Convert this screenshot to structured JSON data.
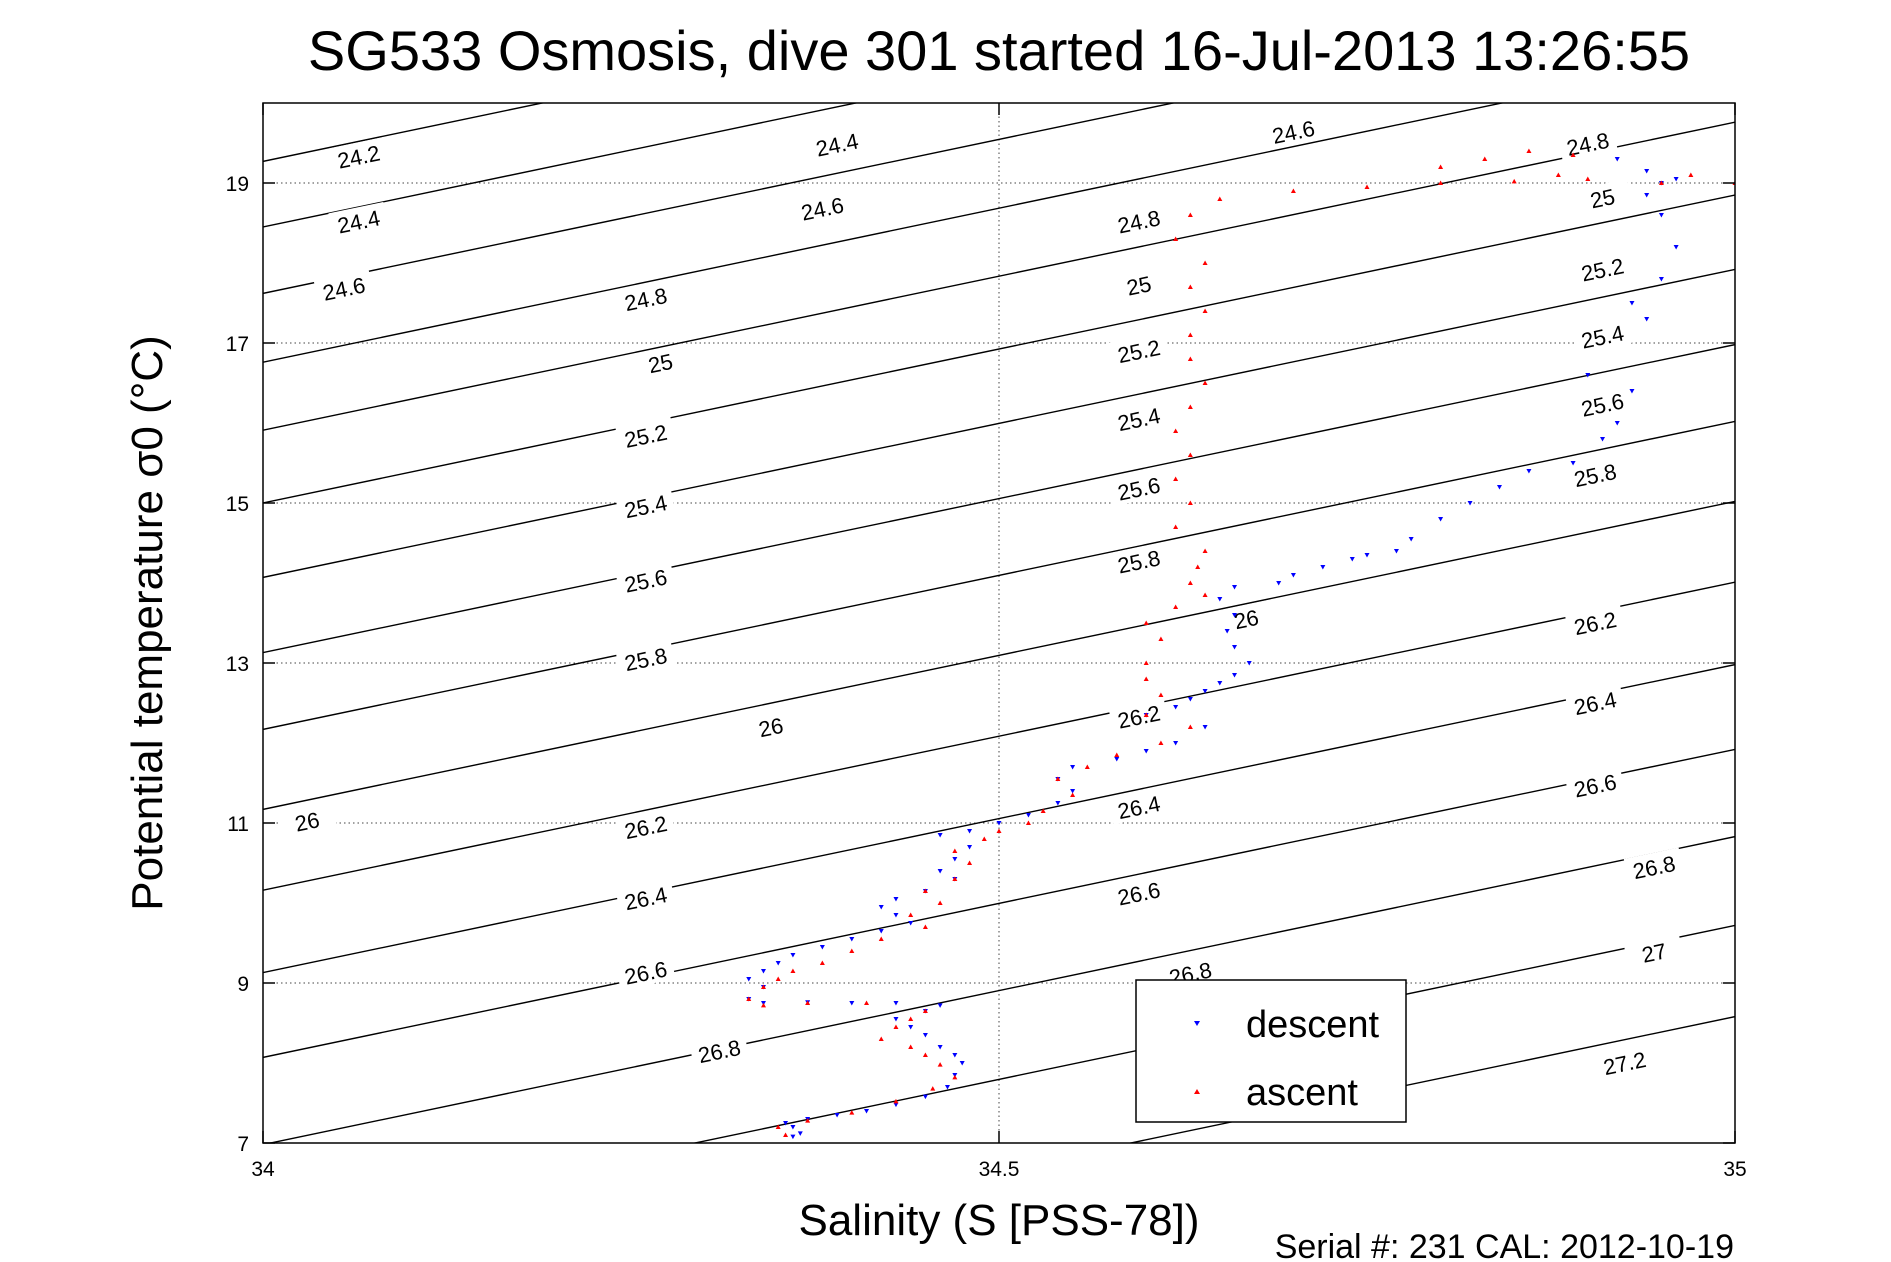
{
  "chart_data": {
    "type": "scatter",
    "title": "SG533 Osmosis, dive 301 started 16-Jul-2013 13:26:55",
    "xlabel": "Salinity (S [PSS-78])",
    "ylabel": "Potential temperature σ0 (°C)",
    "xlim": [
      34,
      35
    ],
    "ylim": [
      7,
      20
    ],
    "xticks": [
      34,
      34.5,
      35
    ],
    "xtick_labels": [
      "34",
      "34.5",
      "35"
    ],
    "yticks": [
      7,
      9,
      11,
      13,
      15,
      17,
      19
    ],
    "ytick_labels": [
      "7",
      "9",
      "11",
      "13",
      "15",
      "17",
      "19"
    ],
    "grid": "dotted at x=34.5 and at each y tick",
    "legend_position": "bottom-right inside axes",
    "footer": "Serial #: 231  CAL: 2012-10-19",
    "density_contours": {
      "levels": [
        {
          "level": "24.2",
          "t_at_34": 19.27
        },
        {
          "level": "24.4",
          "t_at_34": 18.45
        },
        {
          "level": "24.6",
          "t_at_34": 17.62
        },
        {
          "level": "24.8",
          "t_at_34": 16.76
        },
        {
          "level": "25",
          "t_at_34": 15.91
        },
        {
          "level": "25.2",
          "t_at_34": 15.0
        },
        {
          "level": "25.4",
          "t_at_34": 14.07
        },
        {
          "level": "25.6",
          "t_at_34": 13.13
        },
        {
          "level": "25.8",
          "t_at_34": 12.17
        },
        {
          "level": "26",
          "t_at_34": 11.17
        },
        {
          "level": "26.2",
          "t_at_34": 10.16
        },
        {
          "level": "26.4",
          "t_at_34": 9.13
        },
        {
          "level": "26.6",
          "t_at_34": 8.07
        },
        {
          "level": "26.8",
          "t_at_34": 6.98
        },
        {
          "level": "27",
          "t_at_34": 5.87
        },
        {
          "level": "27.2",
          "t_at_34": 4.73
        }
      ],
      "labels": [
        {
          "text": "24.2",
          "s": 34.065,
          "t": 19.33
        },
        {
          "text": "24.4",
          "s": 34.065,
          "t": 18.52
        },
        {
          "text": "24.6",
          "s": 34.055,
          "t": 17.68
        },
        {
          "text": "24.4",
          "s": 34.39,
          "t": 19.48
        },
        {
          "text": "24.6",
          "s": 34.38,
          "t": 18.68
        },
        {
          "text": "24.8",
          "s": 34.26,
          "t": 17.55
        },
        {
          "text": "25",
          "s": 34.27,
          "t": 16.75
        },
        {
          "text": "25.2",
          "s": 34.26,
          "t": 15.84
        },
        {
          "text": "25.4",
          "s": 34.26,
          "t": 14.96
        },
        {
          "text": "25.6",
          "s": 34.26,
          "t": 14.03
        },
        {
          "text": "25.8",
          "s": 34.26,
          "t": 13.05
        },
        {
          "text": "26",
          "s": 34.345,
          "t": 12.2
        },
        {
          "text": "26",
          "s": 34.03,
          "t": 11.02
        },
        {
          "text": "26.2",
          "s": 34.26,
          "t": 10.95
        },
        {
          "text": "26.4",
          "s": 34.26,
          "t": 10.06
        },
        {
          "text": "26.6",
          "s": 34.26,
          "t": 9.13
        },
        {
          "text": "26.8",
          "s": 34.31,
          "t": 8.15
        },
        {
          "text": "24.6",
          "s": 34.7,
          "t": 19.64
        },
        {
          "text": "24.8",
          "s": 34.595,
          "t": 18.52
        },
        {
          "text": "25",
          "s": 34.595,
          "t": 17.72
        },
        {
          "text": "25.2",
          "s": 34.595,
          "t": 16.9
        },
        {
          "text": "25.4",
          "s": 34.595,
          "t": 16.05
        },
        {
          "text": "25.6",
          "s": 34.595,
          "t": 15.18
        },
        {
          "text": "25.8",
          "s": 34.595,
          "t": 14.27
        },
        {
          "text": "26",
          "s": 34.668,
          "t": 13.55
        },
        {
          "text": "26.2",
          "s": 34.595,
          "t": 12.33
        },
        {
          "text": "26.4",
          "s": 34.595,
          "t": 11.2
        },
        {
          "text": "26.6",
          "s": 34.595,
          "t": 10.12
        },
        {
          "text": "26.8",
          "s": 34.63,
          "t": 9.12
        },
        {
          "text": "24.8",
          "s": 34.9,
          "t": 19.49
        },
        {
          "text": "25",
          "s": 34.91,
          "t": 18.81
        },
        {
          "text": "25.2",
          "s": 34.91,
          "t": 17.92
        },
        {
          "text": "25.4",
          "s": 34.91,
          "t": 17.08
        },
        {
          "text": "25.6",
          "s": 34.91,
          "t": 16.23
        },
        {
          "text": "25.8",
          "s": 34.905,
          "t": 15.35
        },
        {
          "text": "26.2",
          "s": 34.905,
          "t": 13.5
        },
        {
          "text": "26.4",
          "s": 34.905,
          "t": 12.5
        },
        {
          "text": "26.6",
          "s": 34.905,
          "t": 11.47
        },
        {
          "text": "26.8",
          "s": 34.945,
          "t": 10.45
        },
        {
          "text": "27",
          "s": 34.945,
          "t": 9.38
        },
        {
          "text": "27.2",
          "s": 34.925,
          "t": 8.0
        }
      ]
    },
    "series": [
      {
        "name": "descent",
        "color": "#0000ff",
        "marker": "triangle-down",
        "points": [
          [
            34.36,
            7.08
          ],
          [
            34.365,
            7.12
          ],
          [
            34.36,
            7.2
          ],
          [
            34.355,
            7.25
          ],
          [
            34.37,
            7.3
          ],
          [
            34.39,
            7.35
          ],
          [
            34.41,
            7.4
          ],
          [
            34.43,
            7.48
          ],
          [
            34.45,
            7.58
          ],
          [
            34.465,
            7.7
          ],
          [
            34.47,
            7.85
          ],
          [
            34.475,
            8.0
          ],
          [
            34.47,
            8.1
          ],
          [
            34.46,
            8.2
          ],
          [
            34.45,
            8.35
          ],
          [
            34.44,
            8.45
          ],
          [
            34.43,
            8.55
          ],
          [
            34.45,
            8.65
          ],
          [
            34.46,
            8.72
          ],
          [
            34.43,
            8.75
          ],
          [
            34.4,
            8.75
          ],
          [
            34.37,
            8.76
          ],
          [
            34.34,
            8.75
          ],
          [
            34.33,
            8.8
          ],
          [
            34.34,
            8.95
          ],
          [
            34.33,
            9.05
          ],
          [
            34.34,
            9.15
          ],
          [
            34.35,
            9.25
          ],
          [
            34.36,
            9.35
          ],
          [
            34.38,
            9.45
          ],
          [
            34.4,
            9.55
          ],
          [
            34.42,
            9.65
          ],
          [
            34.44,
            9.75
          ],
          [
            34.43,
            9.85
          ],
          [
            34.42,
            9.95
          ],
          [
            34.43,
            10.05
          ],
          [
            34.45,
            10.15
          ],
          [
            34.47,
            10.3
          ],
          [
            34.46,
            10.4
          ],
          [
            34.47,
            10.55
          ],
          [
            34.48,
            10.7
          ],
          [
            34.46,
            10.85
          ],
          [
            34.48,
            10.9
          ],
          [
            34.5,
            11.0
          ],
          [
            34.52,
            11.1
          ],
          [
            34.54,
            11.25
          ],
          [
            34.55,
            11.4
          ],
          [
            34.54,
            11.55
          ],
          [
            34.55,
            11.7
          ],
          [
            34.58,
            11.8
          ],
          [
            34.6,
            11.9
          ],
          [
            34.62,
            12.0
          ],
          [
            34.64,
            12.2
          ],
          [
            34.6,
            12.35
          ],
          [
            34.62,
            12.45
          ],
          [
            34.63,
            12.55
          ],
          [
            34.64,
            12.65
          ],
          [
            34.65,
            12.75
          ],
          [
            34.66,
            12.85
          ],
          [
            34.67,
            13.0
          ],
          [
            34.66,
            13.2
          ],
          [
            34.655,
            13.4
          ],
          [
            34.66,
            13.6
          ],
          [
            34.65,
            13.8
          ],
          [
            34.66,
            13.95
          ],
          [
            34.69,
            14.0
          ],
          [
            34.7,
            14.1
          ],
          [
            34.72,
            14.2
          ],
          [
            34.74,
            14.3
          ],
          [
            34.75,
            14.35
          ],
          [
            34.77,
            14.4
          ],
          [
            34.78,
            14.55
          ],
          [
            34.8,
            14.8
          ],
          [
            34.82,
            15.0
          ],
          [
            34.84,
            15.2
          ],
          [
            34.86,
            15.4
          ],
          [
            34.89,
            15.5
          ],
          [
            34.91,
            15.8
          ],
          [
            34.92,
            16.0
          ],
          [
            34.93,
            16.4
          ],
          [
            34.9,
            16.6
          ],
          [
            34.94,
            17.3
          ],
          [
            34.93,
            17.5
          ],
          [
            34.95,
            17.8
          ],
          [
            34.96,
            18.2
          ],
          [
            34.95,
            18.6
          ],
          [
            34.94,
            18.85
          ],
          [
            34.95,
            19.0
          ],
          [
            34.96,
            19.05
          ],
          [
            34.94,
            19.15
          ],
          [
            34.92,
            19.3
          ]
        ]
      },
      {
        "name": "ascent",
        "color": "#ff0000",
        "marker": "triangle-up",
        "points": [
          [
            34.355,
            7.1
          ],
          [
            34.35,
            7.2
          ],
          [
            34.37,
            7.28
          ],
          [
            34.4,
            7.38
          ],
          [
            34.43,
            7.52
          ],
          [
            34.455,
            7.68
          ],
          [
            34.47,
            7.82
          ],
          [
            34.46,
            7.98
          ],
          [
            34.45,
            8.1
          ],
          [
            34.44,
            8.2
          ],
          [
            34.42,
            8.3
          ],
          [
            34.43,
            8.45
          ],
          [
            34.44,
            8.55
          ],
          [
            34.45,
            8.65
          ],
          [
            34.41,
            8.75
          ],
          [
            34.37,
            8.75
          ],
          [
            34.34,
            8.72
          ],
          [
            34.33,
            8.8
          ],
          [
            34.34,
            8.95
          ],
          [
            34.35,
            9.05
          ],
          [
            34.36,
            9.15
          ],
          [
            34.38,
            9.25
          ],
          [
            34.4,
            9.4
          ],
          [
            34.42,
            9.55
          ],
          [
            34.45,
            9.7
          ],
          [
            34.44,
            9.85
          ],
          [
            34.46,
            10.0
          ],
          [
            34.45,
            10.15
          ],
          [
            34.47,
            10.3
          ],
          [
            34.48,
            10.5
          ],
          [
            34.47,
            10.65
          ],
          [
            34.49,
            10.8
          ],
          [
            34.5,
            10.9
          ],
          [
            34.52,
            11.0
          ],
          [
            34.53,
            11.15
          ],
          [
            34.55,
            11.35
          ],
          [
            34.54,
            11.55
          ],
          [
            34.56,
            11.7
          ],
          [
            34.58,
            11.85
          ],
          [
            34.61,
            12.0
          ],
          [
            34.63,
            12.2
          ],
          [
            34.6,
            12.35
          ],
          [
            34.61,
            12.6
          ],
          [
            34.6,
            12.8
          ],
          [
            34.6,
            13.0
          ],
          [
            34.61,
            13.3
          ],
          [
            34.6,
            13.5
          ],
          [
            34.62,
            13.7
          ],
          [
            34.64,
            13.85
          ],
          [
            34.63,
            14.0
          ],
          [
            34.635,
            14.2
          ],
          [
            34.64,
            14.4
          ],
          [
            34.62,
            14.7
          ],
          [
            34.63,
            15.0
          ],
          [
            34.62,
            15.3
          ],
          [
            34.63,
            15.6
          ],
          [
            34.62,
            15.9
          ],
          [
            34.63,
            16.2
          ],
          [
            34.64,
            16.5
          ],
          [
            34.63,
            16.8
          ],
          [
            34.63,
            17.1
          ],
          [
            34.64,
            17.4
          ],
          [
            34.63,
            17.7
          ],
          [
            34.64,
            18.0
          ],
          [
            34.62,
            18.3
          ],
          [
            34.63,
            18.6
          ],
          [
            34.65,
            18.8
          ],
          [
            34.7,
            18.9
          ],
          [
            34.75,
            18.95
          ],
          [
            34.8,
            19.0
          ],
          [
            34.85,
            19.02
          ],
          [
            34.88,
            19.1
          ],
          [
            34.9,
            19.05
          ],
          [
            34.95,
            19.0
          ],
          [
            34.97,
            19.1
          ],
          [
            35.0,
            19.0
          ],
          [
            34.8,
            19.2
          ],
          [
            34.83,
            19.3
          ],
          [
            34.86,
            19.4
          ],
          [
            34.89,
            19.35
          ]
        ]
      }
    ]
  }
}
